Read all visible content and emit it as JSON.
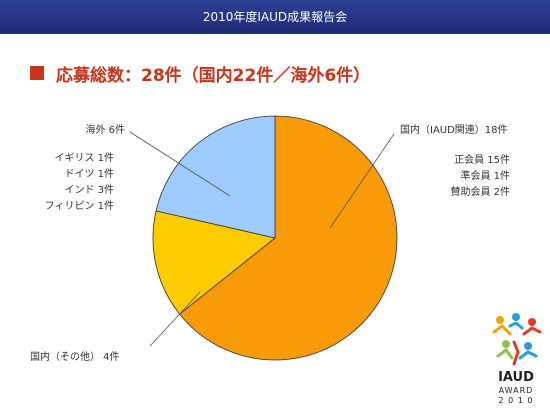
{
  "header": {
    "title": "2010年度IAUD成果報告会"
  },
  "heading": {
    "text": "応募総数：28件（国内22件／海外6件）"
  },
  "chart_data": {
    "type": "pie",
    "slices": [
      {
        "label": "国内（IAUD関連）18件",
        "value": 18,
        "color": "#f99a08"
      },
      {
        "label": "国内（その他）4件",
        "value": 4,
        "color": "#ffcc00"
      },
      {
        "label": "海外 6件",
        "value": 6,
        "color": "#9fcbff"
      }
    ],
    "start_angle_deg": 0,
    "direction": "clockwise"
  },
  "labels": {
    "iaud_title": "国内（IAUD関連）18件",
    "iaud_breakdown": [
      "正会員 15件",
      "準会員 1件",
      "賛助会員 2件"
    ],
    "other_title": "国内（その他） 4件",
    "overseas_title": "海外 6件",
    "overseas_breakdown": [
      "イギリス 1件",
      "ドイツ 1件",
      "インド 3件",
      "フィリピン 1件"
    ]
  },
  "logo": {
    "line1": "IAUD",
    "line2": "AWARD",
    "line3": "2 0 1 0"
  }
}
